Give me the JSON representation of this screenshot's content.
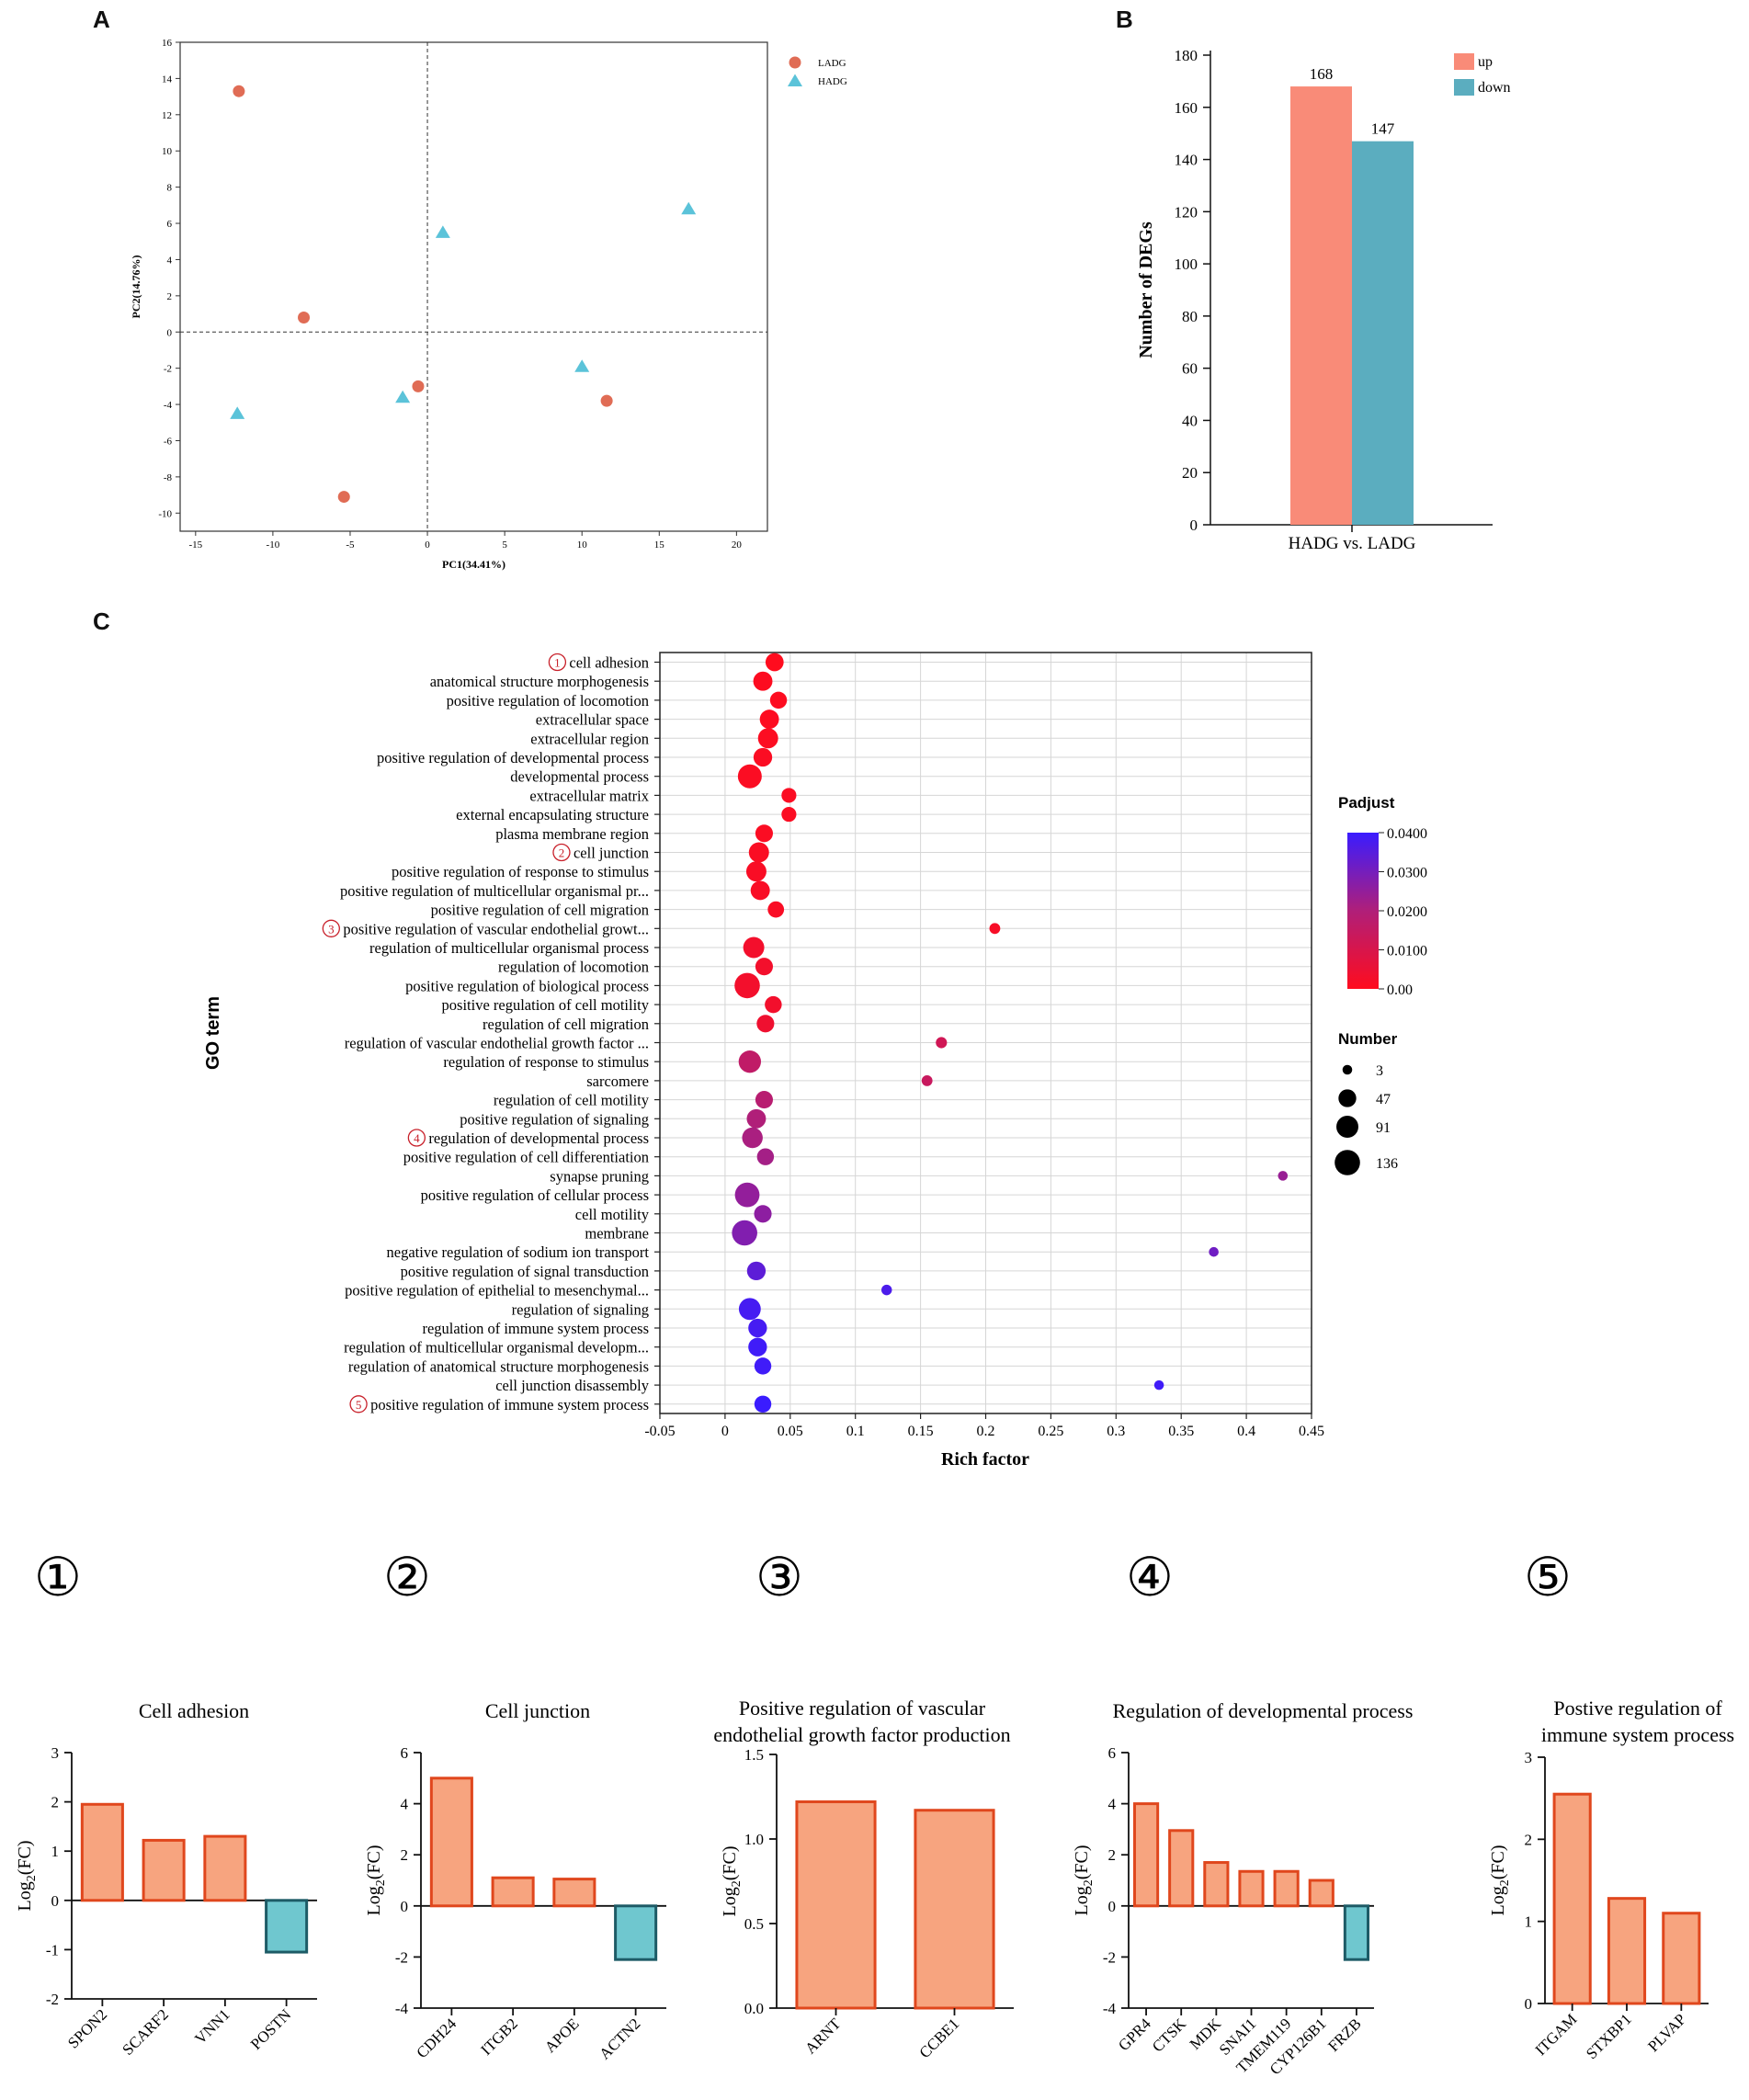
{
  "panels": {
    "a": "A",
    "b": "B",
    "c": "C"
  },
  "chart_data": [
    {
      "id": "pca",
      "type": "scatter",
      "xlabel": "PC1(34.41%)",
      "ylabel": "PC2(14.76%)",
      "xlim": [
        -16,
        22
      ],
      "ylim": [
        -11,
        16
      ],
      "xticks": [
        -15,
        -10,
        -5,
        0,
        5,
        10,
        15,
        20
      ],
      "yticks": [
        -10,
        -8,
        -6,
        -4,
        -2,
        0,
        2,
        4,
        6,
        8,
        10,
        12,
        14,
        16
      ],
      "series": [
        {
          "name": "LADG",
          "marker": "circle",
          "color": "#e06c55",
          "points": [
            [
              -12.2,
              13.3
            ],
            [
              -8,
              0.8
            ],
            [
              -0.6,
              -3
            ],
            [
              11.6,
              -3.8
            ],
            [
              -5.4,
              -9.1
            ]
          ]
        },
        {
          "name": "HADG",
          "marker": "triangle",
          "color": "#5bc3d9",
          "points": [
            [
              16.9,
              6.8
            ],
            [
              1,
              5.5
            ],
            [
              10,
              -1.9
            ],
            [
              -1.6,
              -3.6
            ],
            [
              -12.3,
              -4.5
            ]
          ]
        }
      ]
    },
    {
      "id": "degs",
      "type": "bar",
      "ylabel": "Number of DEGs",
      "ylim": [
        0,
        180
      ],
      "yticks": [
        0,
        20,
        40,
        60,
        80,
        100,
        120,
        140,
        160,
        180
      ],
      "categories": [
        "HADG vs. LADG"
      ],
      "series": [
        {
          "name": "up",
          "color": "#f98b78",
          "values": [
            168
          ]
        },
        {
          "name": "down",
          "color": "#5badbf",
          "values": [
            147
          ]
        }
      ],
      "data_labels": [
        "168",
        "147"
      ]
    },
    {
      "id": "go",
      "type": "scatter",
      "xlabel": "Rich factor",
      "ylabel": "GO term",
      "xlim": [
        -0.05,
        0.45
      ],
      "xticks": [
        -0.05,
        0,
        0.05,
        0.1,
        0.15,
        0.2,
        0.25,
        0.3,
        0.35,
        0.4,
        0.45
      ],
      "xtick_labels": [
        "-0.05",
        "0",
        "0.05",
        "0.1",
        "0.15",
        "0.2",
        "0.25",
        "0.3",
        "0.35",
        "0.4",
        "0.45"
      ],
      "color_legend": {
        "title": "Padjust",
        "range": [
          0,
          0.04
        ],
        "ticks": [
          "0.0400",
          "0.0300",
          "0.0200",
          "0.0100",
          "0.00"
        ]
      },
      "size_legend": {
        "title": "Number",
        "values": [
          3,
          47,
          91,
          136
        ],
        "labels": [
          "3",
          "47",
          "91",
          "136"
        ]
      },
      "circle_marks": [
        "1",
        "2",
        "3",
        "4",
        "5"
      ],
      "terms": [
        {
          "term": "cell adhesion",
          "rich": 0.038,
          "padj": 0.0,
          "num": 50,
          "mark": "1"
        },
        {
          "term": "anatomical structure morphogenesis",
          "rich": 0.029,
          "padj": 0.0005,
          "num": 60
        },
        {
          "term": "positive regulation of locomotion",
          "rich": 0.041,
          "padj": 0.0005,
          "num": 40
        },
        {
          "term": "extracellular space",
          "rich": 0.034,
          "padj": 0.0005,
          "num": 60
        },
        {
          "term": "extracellular region",
          "rich": 0.033,
          "padj": 0.0008,
          "num": 70
        },
        {
          "term": "positive regulation of developmental process",
          "rich": 0.029,
          "padj": 0.001,
          "num": 55
        },
        {
          "term": "developmental process",
          "rich": 0.019,
          "padj": 0.001,
          "num": 115
        },
        {
          "term": "extracellular matrix",
          "rich": 0.049,
          "padj": 0.001,
          "num": 25
        },
        {
          "term": "external encapsulating structure",
          "rich": 0.049,
          "padj": 0.001,
          "num": 25
        },
        {
          "term": "plasma membrane region",
          "rich": 0.03,
          "padj": 0.001,
          "num": 45
        },
        {
          "term": "cell junction",
          "rich": 0.026,
          "padj": 0.0012,
          "num": 70,
          "mark": "2"
        },
        {
          "term": "positive regulation of response to stimulus",
          "rich": 0.024,
          "padj": 0.0015,
          "num": 70
        },
        {
          "term": "positive regulation of multicellular organismal pr...",
          "rich": 0.027,
          "padj": 0.0015,
          "num": 60
        },
        {
          "term": "positive regulation of cell migration",
          "rich": 0.039,
          "padj": 0.0015,
          "num": 35
        },
        {
          "term": "positive regulation of vascular endothelial growt...",
          "rich": 0.207,
          "padj": 0.002,
          "num": 6,
          "mark": "3"
        },
        {
          "term": "regulation of multicellular organismal process",
          "rich": 0.022,
          "padj": 0.003,
          "num": 80
        },
        {
          "term": "regulation of locomotion",
          "rich": 0.03,
          "padj": 0.003,
          "num": 45
        },
        {
          "term": "positive regulation of biological process",
          "rich": 0.017,
          "padj": 0.003,
          "num": 136
        },
        {
          "term": "positive regulation of cell motility",
          "rich": 0.037,
          "padj": 0.003,
          "num": 40
        },
        {
          "term": "regulation of cell migration",
          "rich": 0.031,
          "padj": 0.004,
          "num": 45
        },
        {
          "term": "regulation of vascular endothelial growth factor ...",
          "rich": 0.166,
          "padj": 0.012,
          "num": 7
        },
        {
          "term": "regulation of response to stimulus",
          "rich": 0.019,
          "padj": 0.016,
          "num": 95
        },
        {
          "term": "sarcomere",
          "rich": 0.155,
          "padj": 0.014,
          "num": 6
        },
        {
          "term": "regulation of cell motility",
          "rich": 0.03,
          "padj": 0.018,
          "num": 45
        },
        {
          "term": "positive regulation of signaling",
          "rich": 0.024,
          "padj": 0.02,
          "num": 60
        },
        {
          "term": "regulation of developmental process",
          "rich": 0.021,
          "padj": 0.021,
          "num": 75,
          "mark": "4"
        },
        {
          "term": "positive regulation of cell differentiation",
          "rich": 0.031,
          "padj": 0.022,
          "num": 40
        },
        {
          "term": "synapse pruning",
          "rich": 0.428,
          "padj": 0.024,
          "num": 3
        },
        {
          "term": "positive regulation of cellular process",
          "rich": 0.017,
          "padj": 0.025,
          "num": 125
        },
        {
          "term": "cell motility",
          "rich": 0.029,
          "padj": 0.026,
          "num": 45
        },
        {
          "term": "membrane",
          "rich": 0.015,
          "padj": 0.028,
          "num": 136
        },
        {
          "term": "negative regulation of sodium ion transport",
          "rich": 0.375,
          "padj": 0.031,
          "num": 3
        },
        {
          "term": "positive regulation of signal transduction",
          "rich": 0.024,
          "padj": 0.034,
          "num": 55
        },
        {
          "term": "positive regulation of epithelial to mesenchymal...",
          "rich": 0.124,
          "padj": 0.037,
          "num": 5
        },
        {
          "term": "regulation of signaling",
          "rich": 0.019,
          "padj": 0.038,
          "num": 90
        },
        {
          "term": "regulation of immune system process",
          "rich": 0.025,
          "padj": 0.038,
          "num": 55
        },
        {
          "term": "regulation of multicellular organismal developm...",
          "rich": 0.025,
          "padj": 0.039,
          "num": 55
        },
        {
          "term": "regulation of anatomical structure morphogenesis",
          "rich": 0.029,
          "padj": 0.039,
          "num": 40
        },
        {
          "term": "cell junction disassembly",
          "rich": 0.333,
          "padj": 0.039,
          "num": 3
        },
        {
          "term": "positive regulation of immune system process",
          "rich": 0.029,
          "padj": 0.04,
          "num": 40,
          "mark": "5"
        }
      ]
    },
    {
      "id": "g1",
      "type": "bar",
      "mark": "①",
      "title": "Cell adhesion",
      "ylabel": "Log2(FC)",
      "ylim": [
        -2,
        3
      ],
      "yticks": [
        -2,
        -1,
        0,
        1,
        2,
        3
      ],
      "ytick_labels": [
        "-2",
        "-1",
        "0",
        "1",
        "2",
        "3"
      ],
      "categories": [
        "SPON2",
        "SCARF2",
        "VNN1",
        "POSTN"
      ],
      "values": [
        1.95,
        1.22,
        1.3,
        -1.05
      ]
    },
    {
      "id": "g2",
      "type": "bar",
      "mark": "②",
      "title": "Cell junction",
      "ylabel": "Log2(FC)",
      "ylim": [
        -4,
        6
      ],
      "yticks": [
        -4,
        -2,
        0,
        2,
        4,
        6
      ],
      "ytick_labels": [
        "-4",
        "-2",
        "0",
        "2",
        "4",
        "6"
      ],
      "categories": [
        "CDH24",
        "ITGB2",
        "APOE",
        "ACTN2"
      ],
      "values": [
        5.0,
        1.1,
        1.05,
        -2.1
      ]
    },
    {
      "id": "g3",
      "type": "bar",
      "mark": "③",
      "title": "Positive regulation of vascular endothelial growth factor production",
      "title_lines": [
        "Positive regulation of vascular",
        "endothelial growth factor production"
      ],
      "ylabel": "Log2(FC)",
      "ylim": [
        0,
        1.5
      ],
      "yticks": [
        0,
        0.5,
        1,
        1.5
      ],
      "ytick_labels": [
        "0.0",
        "0.5",
        "1.0",
        "1.5"
      ],
      "categories": [
        "ARNT",
        "CCBE1"
      ],
      "values": [
        1.22,
        1.17
      ]
    },
    {
      "id": "g4",
      "type": "bar",
      "mark": "④",
      "title": "Regulation of developmental process",
      "ylabel": "Log2(FC)",
      "ylim": [
        -4,
        6
      ],
      "yticks": [
        -4,
        -2,
        0,
        2,
        4,
        6
      ],
      "ytick_labels": [
        "-4",
        "-2",
        "0",
        "2",
        "4",
        "6"
      ],
      "categories": [
        "GPR4",
        "CTSK",
        "MDK",
        "SNAI1",
        "TMEM119",
        "CYP126B1",
        "FRZB"
      ],
      "values": [
        4.0,
        2.95,
        1.7,
        1.35,
        1.35,
        1.0,
        -2.1
      ]
    },
    {
      "id": "g5",
      "type": "bar",
      "mark": "⑤",
      "title": "Postive regulation of immune system process",
      "title_lines": [
        "Postive regulation of",
        "immune system process"
      ],
      "ylabel": "Log2(FC)",
      "ylim": [
        0,
        3
      ],
      "yticks": [
        0,
        1,
        2,
        3
      ],
      "ytick_labels": [
        "0",
        "1",
        "2",
        "3"
      ],
      "categories": [
        "ITGAM",
        "STXBP1",
        "PLVAP"
      ],
      "values": [
        2.55,
        1.28,
        1.1
      ]
    }
  ],
  "colors": {
    "up_fill": "#f7a47f",
    "up_stroke": "#e0471d",
    "down_fill": "#6fc7cf",
    "down_stroke": "#1d5b66",
    "grid": "#d6d6d6"
  }
}
